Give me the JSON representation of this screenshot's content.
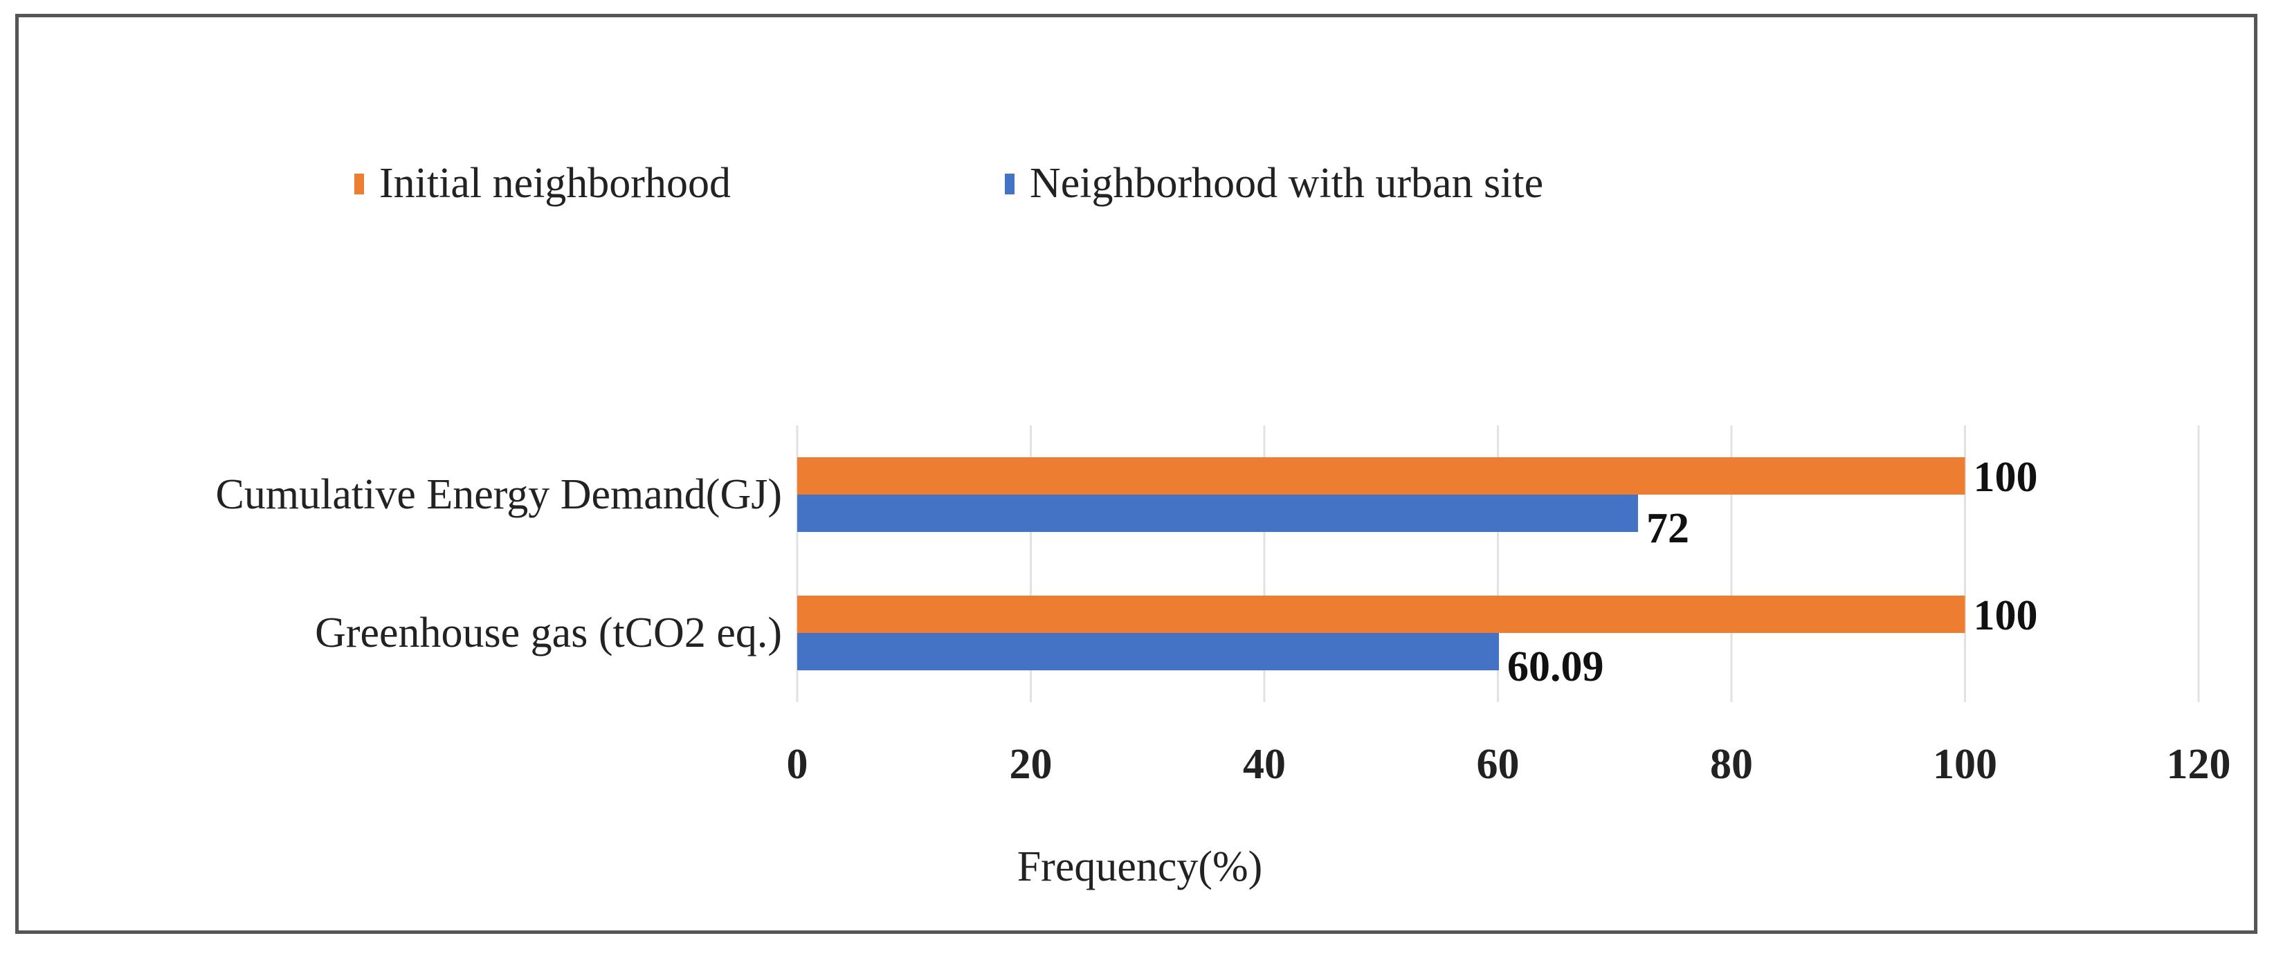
{
  "chart_data": {
    "type": "bar",
    "orientation": "horizontal",
    "title": "",
    "categories": [
      "Greenhouse gas (tCO2 eq.)",
      "Cumulative Energy Demand(GJ)"
    ],
    "series": [
      {
        "name": "Initial neighborhood",
        "color": "#ED7D31",
        "values": [
          100,
          100
        ]
      },
      {
        "name": "Neighborhood with urban site",
        "color": "#4472C4",
        "values": [
          60.09,
          72
        ]
      }
    ],
    "data_labels": {
      "Initial neighborhood": [
        "100",
        "100"
      ],
      "Neighborhood with urban site": [
        "60.09",
        "72"
      ]
    },
    "xlabel": "Frequency(%)",
    "ylabel": "",
    "xlim": [
      0,
      120
    ],
    "xticks": [
      0,
      20,
      40,
      60,
      80,
      100,
      120
    ],
    "grid": "vertical",
    "legend": "top-left"
  }
}
